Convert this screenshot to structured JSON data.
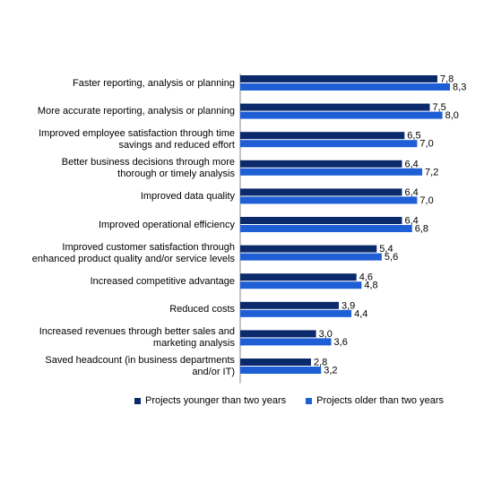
{
  "chart_data": {
    "type": "bar",
    "orientation": "horizontal",
    "categories": [
      "Faster reporting, analysis or planning",
      "More accurate reporting, analysis or planning",
      "Improved employee satisfaction through time savings and reduced effort",
      "Better business decisions through more thorough or timely analysis",
      "Improved data quality",
      "Improved operational efficiency",
      "Improved customer satisfaction through enhanced product quality and/or service levels",
      "Increased competitive advantage",
      "Reduced costs",
      "Increased revenues through better sales and marketing analysis",
      "Saved headcount (in business departments and/or IT)"
    ],
    "category_lines": [
      [
        "Faster reporting, analysis or planning"
      ],
      [
        "More accurate reporting, analysis or planning"
      ],
      [
        "Improved employee satisfaction through time",
        "savings and reduced effort"
      ],
      [
        "Better business decisions through more",
        "thorough or timely analysis"
      ],
      [
        "Improved data quality"
      ],
      [
        "Improved operational efficiency"
      ],
      [
        "Improved customer satisfaction through",
        "enhanced product quality and/or service levels"
      ],
      [
        "Increased competitive advantage"
      ],
      [
        "Reduced costs"
      ],
      [
        "Increased revenues through better sales and",
        "marketing analysis"
      ],
      [
        "Saved headcount (in business departments",
        "and/or IT)"
      ]
    ],
    "series": [
      {
        "name": "Projects younger than two years",
        "color": "#0b2a6b",
        "values": [
          7.8,
          7.5,
          6.5,
          6.4,
          6.4,
          6.4,
          5.4,
          4.6,
          3.9,
          3.0,
          2.8
        ],
        "labels": [
          "7,8",
          "7,5",
          "6,5",
          "6,4",
          "6,4",
          "6,4",
          "5,4",
          "4,6",
          "3,9",
          "3,0",
          "2,8"
        ]
      },
      {
        "name": "Projects older than two years",
        "color": "#1f5fd6",
        "values": [
          8.3,
          8.0,
          7.0,
          7.2,
          7.0,
          6.8,
          5.6,
          4.8,
          4.4,
          3.6,
          3.2
        ],
        "labels": [
          "8,3",
          "8,0",
          "7,0",
          "7,2",
          "7,0",
          "6,8",
          "5,6",
          "4,8",
          "4,4",
          "3,6",
          "3,2"
        ]
      }
    ],
    "xlim": [
      0,
      9
    ],
    "grid": false,
    "legend_position": "bottom"
  }
}
